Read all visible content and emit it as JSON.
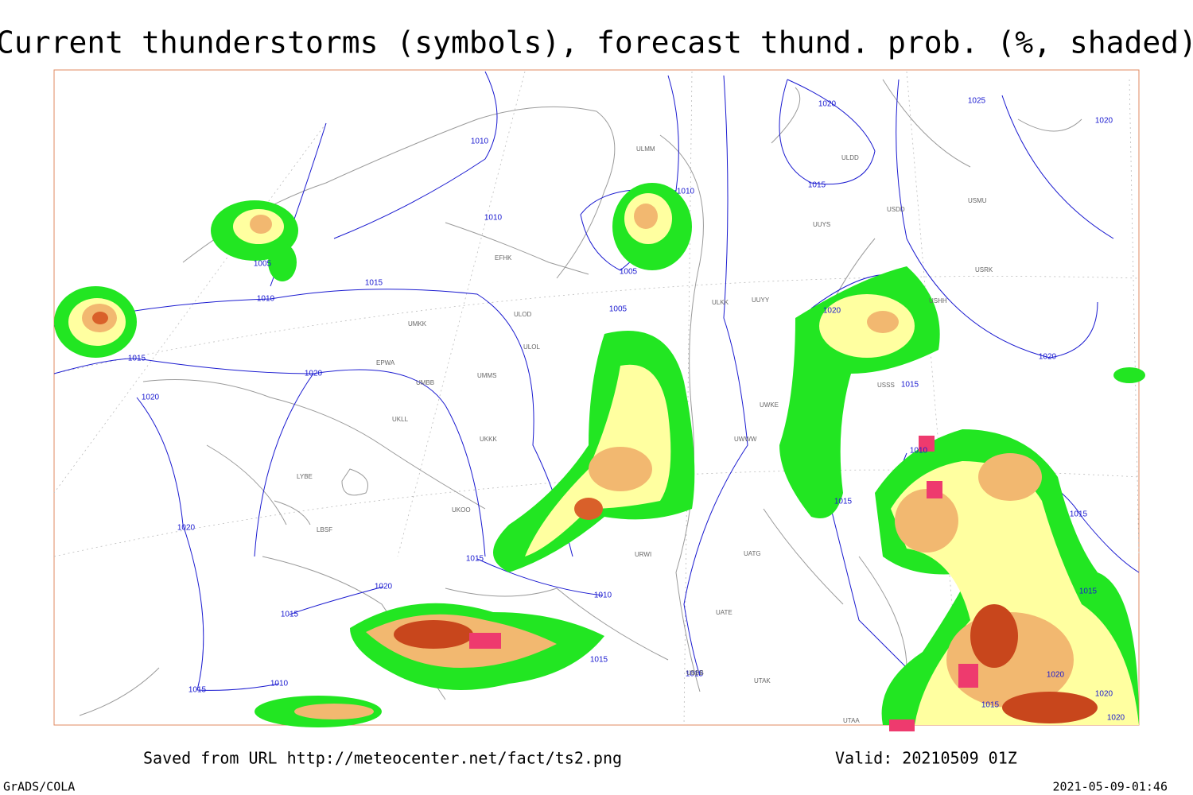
{
  "title": "Current thunderstorms (symbols), forecast thund. prob. (%, shaded)",
  "footer": {
    "source": "Saved from URL http://meteocenter.net/fact/ts2.png",
    "valid": "Valid: 20210509 01Z",
    "software": "GrADS/COLA",
    "timestamp": "2021-05-09-01:46"
  },
  "map": {
    "isobar_labels": [
      1010,
      1010,
      1010,
      1005,
      1005,
      1015,
      1010,
      1005,
      1020,
      1025,
      1020,
      1015,
      1020,
      1015,
      1020,
      1020,
      1015,
      1020,
      1010,
      1015,
      1015,
      1020,
      1015,
      1020,
      1010,
      1015,
      1015,
      1015,
      1010,
      1015,
      1015,
      1020,
      1015,
      1020,
      1020
    ],
    "stations": [
      "ULMM",
      "ULDD",
      "USMU",
      "UUYS",
      "EFHK",
      "ULKK",
      "UUYY",
      "USHH",
      "UMKK",
      "ULOL",
      "EPWA",
      "UMMS",
      "UMBB",
      "USSS",
      "UKLL",
      "UWWW",
      "UKKK",
      "LYBE",
      "UKOO",
      "LBSF",
      "URWI",
      "UTAA",
      "UBBB",
      "USDD",
      "USRK",
      "ULOD",
      "UWKE",
      "UATG",
      "UATE",
      "UTAK"
    ]
  }
}
